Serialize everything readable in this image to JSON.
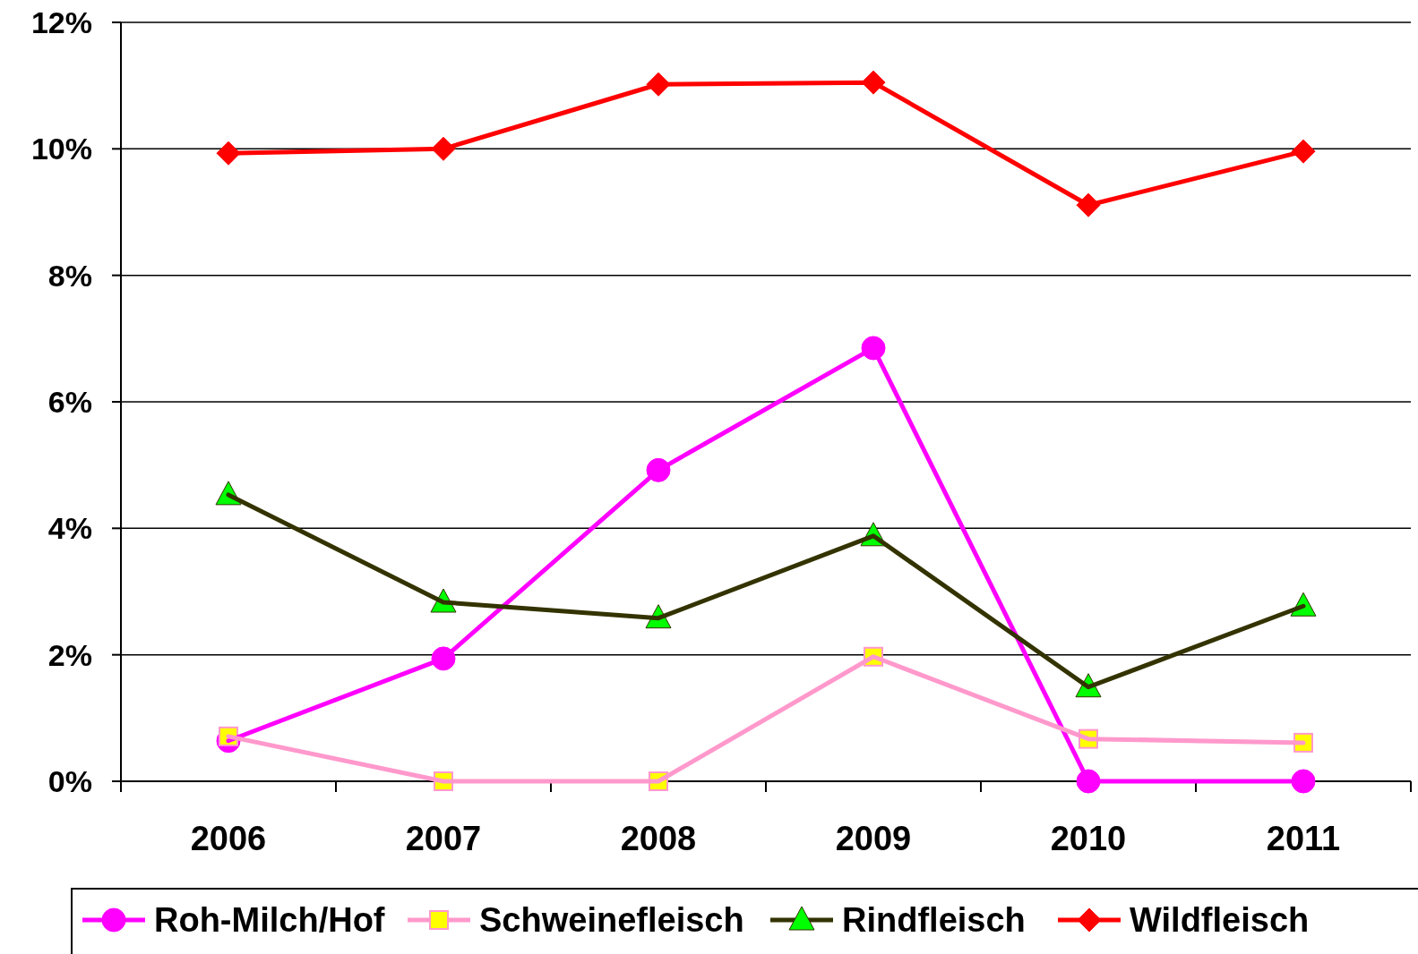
{
  "chart_data": {
    "type": "line",
    "categories": [
      "2006",
      "2007",
      "2008",
      "2009",
      "2010",
      "2011"
    ],
    "series": [
      {
        "name": "Roh-Milch/Hof",
        "color": "#ff00ff",
        "marker": "circle",
        "colors": [
          "#ff00ff",
          "#ff00ff",
          "#ff00ff",
          "#ff00ff",
          "#ff00ff",
          "#ff00ff"
        ],
        "values": [
          0.64,
          1.94,
          4.92,
          6.85,
          0,
          0
        ]
      },
      {
        "name": "Schweinefleisch",
        "color": "#ff99cc",
        "marker": "square",
        "colors": [
          "#ffff00",
          "#ffff00",
          "#ffff00",
          "#ffff00",
          "#ffff00",
          "#ffff00"
        ],
        "values": [
          0.71,
          0,
          0,
          1.97,
          0.67,
          0.61
        ]
      },
      {
        "name": "Rindfleisch",
        "color": "#333300",
        "marker": "triangle",
        "colors": [
          "#00ff00",
          "#00ff00",
          "#00ff00",
          "#00ff00",
          "#00ff00",
          "#00ff00"
        ],
        "values": [
          4.53,
          2.83,
          2.58,
          3.88,
          1.49,
          2.77
        ]
      },
      {
        "name": "Wildfleisch",
        "color": "#ff0000",
        "marker": "diamond",
        "colors": [
          "#ff0000",
          "#ff0000",
          "#ff0000",
          "#ff0000",
          "#ff0000",
          "#ff0000"
        ],
        "values": [
          9.93,
          10.0,
          11.02,
          11.05,
          9.11,
          9.96
        ]
      }
    ],
    "ylim": [
      0,
      12
    ],
    "yticks": [
      {
        "value": 0,
        "label": "0%"
      },
      {
        "value": 2,
        "label": "2%"
      },
      {
        "value": 4,
        "label": "4%"
      },
      {
        "value": 6,
        "label": "6%"
      },
      {
        "value": 8,
        "label": "8%"
      },
      {
        "value": 10,
        "label": "10%"
      },
      {
        "value": 12,
        "label": "12%"
      }
    ],
    "grid": "y",
    "legend": "bottom",
    "line_style": "solid"
  }
}
